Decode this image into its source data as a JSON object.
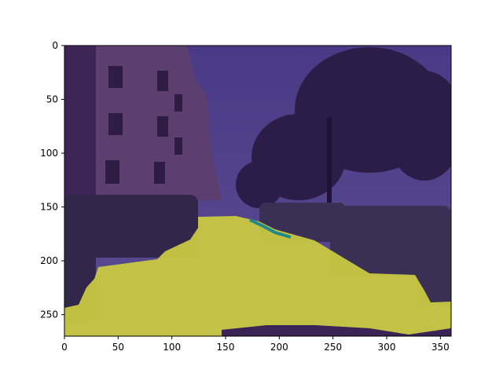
{
  "figure": {
    "x_ticks": [
      "0",
      "50",
      "100",
      "150",
      "200",
      "250",
      "300",
      "350"
    ],
    "y_ticks": [
      "0",
      "50",
      "100",
      "150",
      "200",
      "250"
    ],
    "x_range": [
      0,
      360
    ],
    "y_range": [
      270,
      0
    ],
    "overlay_colors": {
      "background_class": "#3b1f66",
      "road_class": "#d9d93a",
      "sidewalk_edge_class": "#1e8a8a"
    },
    "scene": "street segmentation overlay"
  }
}
